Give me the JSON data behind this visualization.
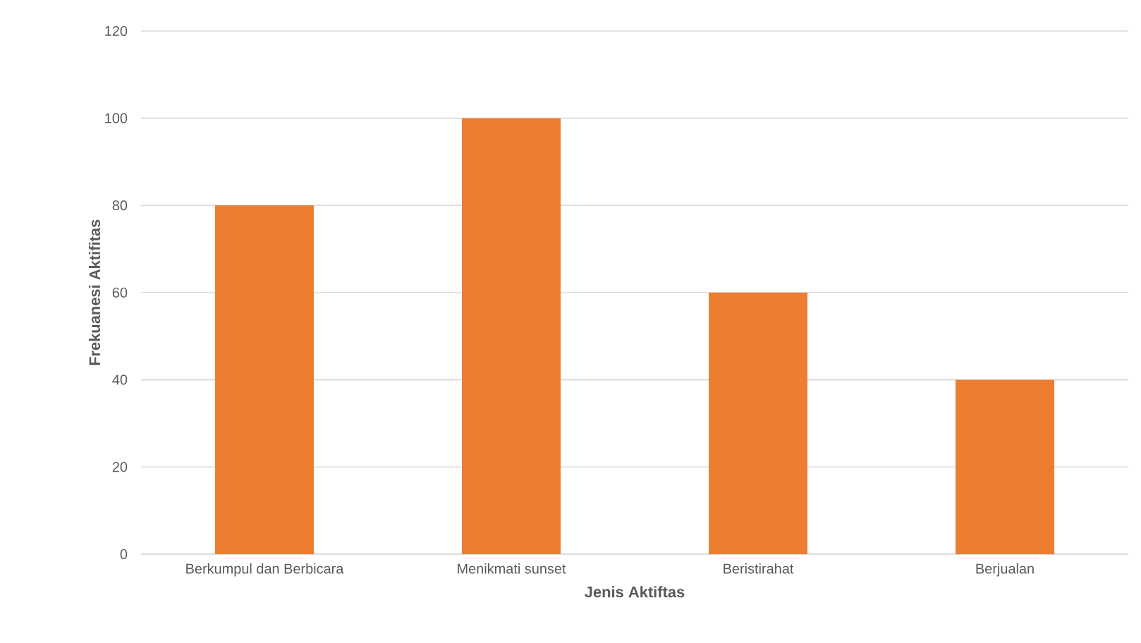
{
  "chart_data": {
    "type": "bar",
    "xlabel": "Jenis Aktiftas",
    "ylabel": "Frekuanesi Aktifitas",
    "categories": [
      "Berkumpul dan Berbicara",
      "Menikmati sunset",
      "Beristirahat",
      "Berjualan"
    ],
    "values": [
      80,
      100,
      60,
      40
    ],
    "color": "#ed7d31",
    "ylim": [
      0,
      120
    ],
    "yticks": [
      0,
      20,
      40,
      60,
      80,
      100,
      120
    ],
    "grid": "y"
  }
}
